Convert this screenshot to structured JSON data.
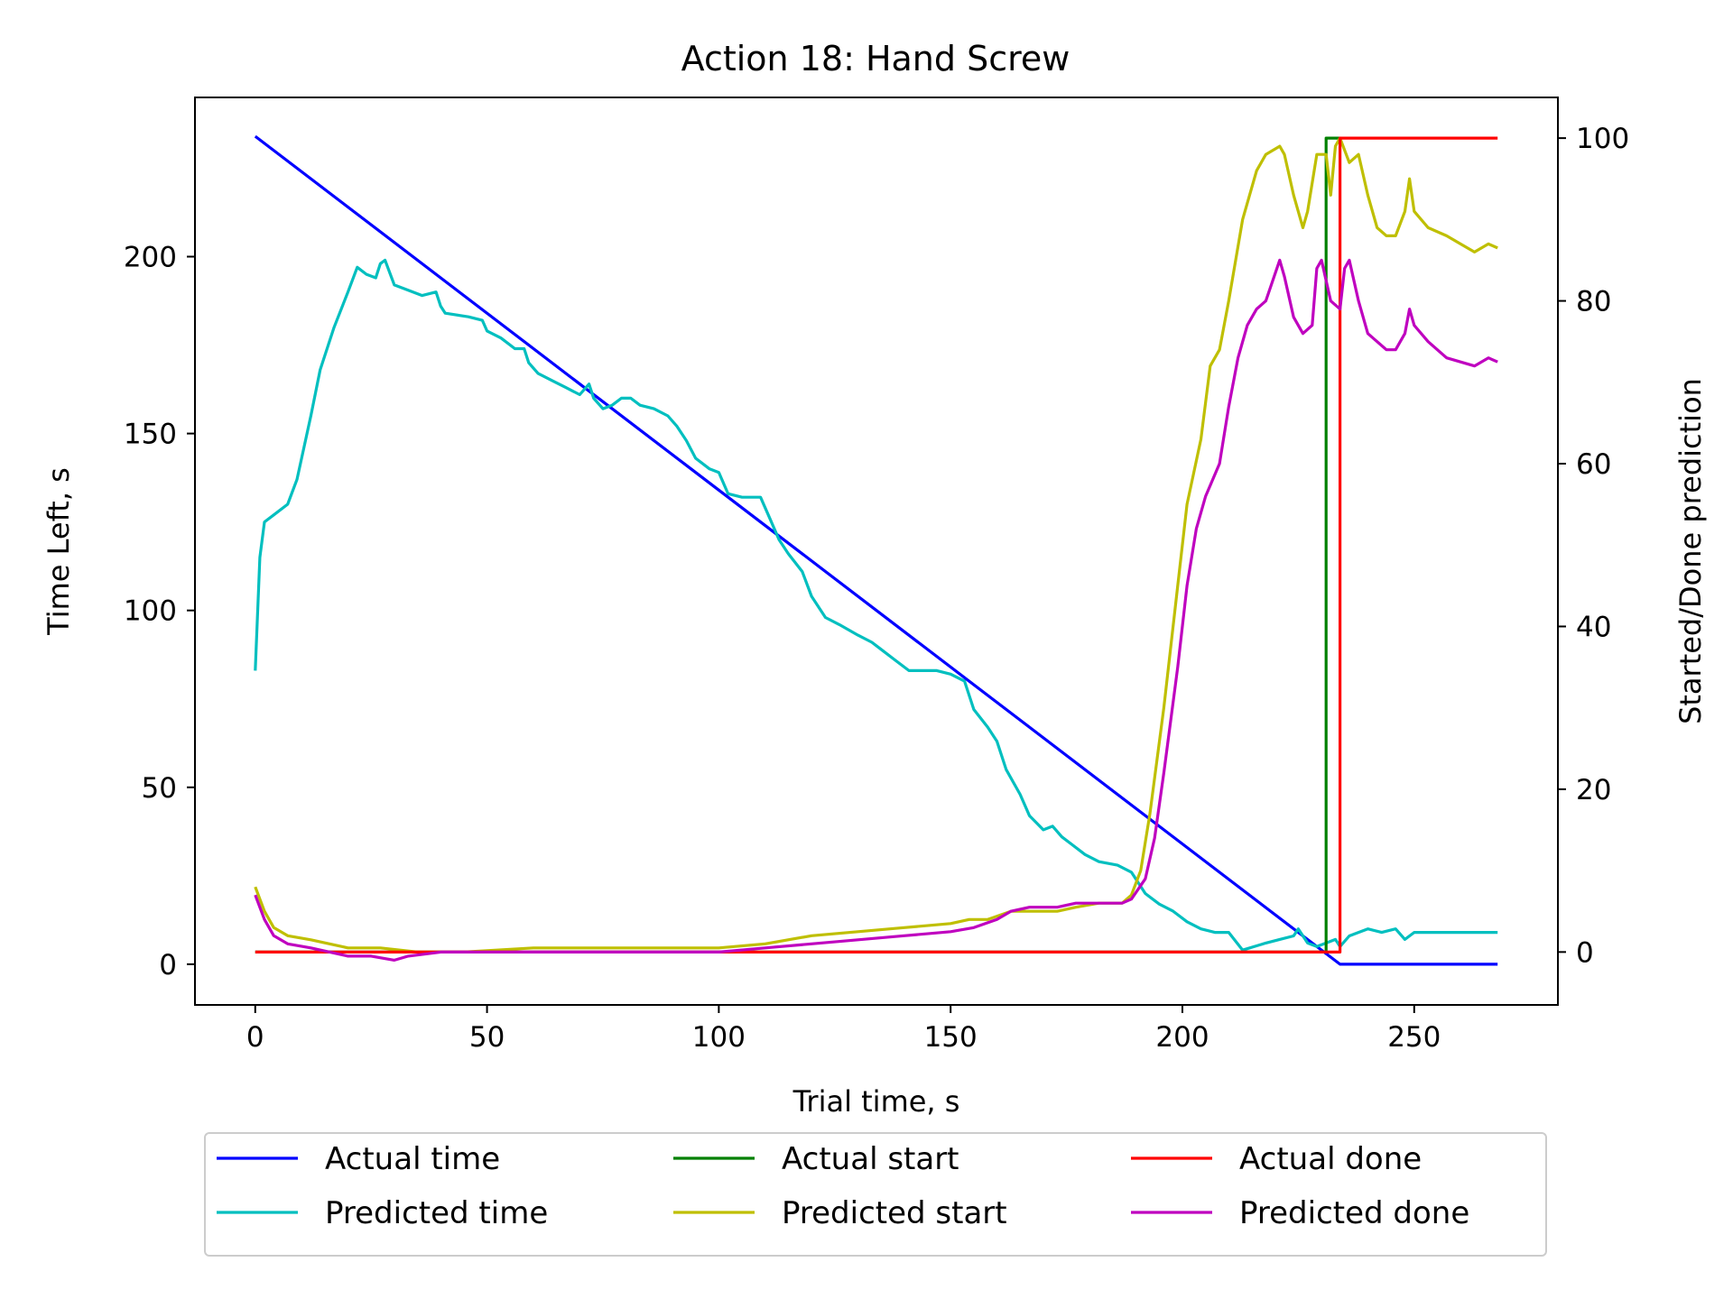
{
  "chart_data": {
    "type": "line",
    "title": "Action 18: Hand Screw",
    "xlabel": "Trial time, s",
    "ylabel": "Time Left, s",
    "ylabel_right": "Started/Done prediction",
    "xlim": [
      -13,
      281
    ],
    "ylim": [
      -11.5,
      245
    ],
    "ylim_right": [
      -6.5,
      105
    ],
    "xticks": [
      0,
      50,
      100,
      150,
      200,
      250
    ],
    "yticks": [
      0,
      50,
      100,
      150,
      200
    ],
    "yticks_right": [
      0,
      20,
      40,
      60,
      80,
      100
    ],
    "grid": false,
    "legend_position": "bottom",
    "series": [
      {
        "name": "Actual time",
        "axis": "left",
        "color": "#0000ff",
        "points": [
          [
            0,
            234
          ],
          [
            234,
            0
          ],
          [
            268,
            0
          ]
        ]
      },
      {
        "name": "Predicted time",
        "axis": "left",
        "color": "#00bfbf",
        "points": [
          [
            0,
            83
          ],
          [
            1,
            115
          ],
          [
            2,
            125
          ],
          [
            4,
            127
          ],
          [
            7,
            130
          ],
          [
            9,
            137
          ],
          [
            12,
            155
          ],
          [
            14,
            168
          ],
          [
            17,
            180
          ],
          [
            20,
            190
          ],
          [
            22,
            197
          ],
          [
            24,
            195
          ],
          [
            26,
            194
          ],
          [
            27,
            198
          ],
          [
            28,
            199
          ],
          [
            30,
            192
          ],
          [
            32,
            191
          ],
          [
            36,
            189
          ],
          [
            39,
            190
          ],
          [
            40,
            186
          ],
          [
            41,
            184
          ],
          [
            46,
            183
          ],
          [
            49,
            182
          ],
          [
            50,
            179
          ],
          [
            53,
            177
          ],
          [
            56,
            174
          ],
          [
            58,
            174
          ],
          [
            59,
            170
          ],
          [
            61,
            167
          ],
          [
            64,
            165
          ],
          [
            67,
            163
          ],
          [
            70,
            161
          ],
          [
            72,
            164
          ],
          [
            73,
            160
          ],
          [
            75,
            157
          ],
          [
            77,
            158
          ],
          [
            79,
            160
          ],
          [
            81,
            160
          ],
          [
            83,
            158
          ],
          [
            86,
            157
          ],
          [
            89,
            155
          ],
          [
            91,
            152
          ],
          [
            93,
            148
          ],
          [
            95,
            143
          ],
          [
            98,
            140
          ],
          [
            100,
            139
          ],
          [
            102,
            133
          ],
          [
            105,
            132
          ],
          [
            109,
            132
          ],
          [
            111,
            126
          ],
          [
            113,
            120
          ],
          [
            115,
            116
          ],
          [
            118,
            111
          ],
          [
            120,
            104
          ],
          [
            123,
            98
          ],
          [
            126,
            96
          ],
          [
            130,
            93
          ],
          [
            133,
            91
          ],
          [
            135,
            89
          ],
          [
            138,
            86
          ],
          [
            141,
            83
          ],
          [
            144,
            83
          ],
          [
            147,
            83
          ],
          [
            150,
            82
          ],
          [
            153,
            80
          ],
          [
            155,
            72
          ],
          [
            158,
            67
          ],
          [
            160,
            63
          ],
          [
            162,
            55
          ],
          [
            165,
            48
          ],
          [
            167,
            42
          ],
          [
            170,
            38
          ],
          [
            172,
            39
          ],
          [
            174,
            36
          ],
          [
            176,
            34
          ],
          [
            179,
            31
          ],
          [
            182,
            29
          ],
          [
            186,
            28
          ],
          [
            189,
            26
          ],
          [
            192,
            20
          ],
          [
            195,
            17
          ],
          [
            198,
            15
          ],
          [
            201,
            12
          ],
          [
            204,
            10
          ],
          [
            207,
            9
          ],
          [
            210,
            9
          ],
          [
            213,
            4
          ],
          [
            218,
            6
          ],
          [
            221,
            7
          ],
          [
            224,
            8
          ],
          [
            225,
            10
          ],
          [
            227,
            6
          ],
          [
            229,
            5
          ],
          [
            231,
            6
          ],
          [
            233,
            7
          ],
          [
            234,
            5
          ],
          [
            236,
            8
          ],
          [
            238,
            9
          ],
          [
            240,
            10
          ],
          [
            243,
            9
          ],
          [
            246,
            10
          ],
          [
            248,
            7
          ],
          [
            250,
            9
          ],
          [
            255,
            9
          ],
          [
            260,
            9
          ],
          [
            265,
            9
          ],
          [
            268,
            9
          ]
        ]
      },
      {
        "name": "Actual start",
        "axis": "right",
        "color": "#008000",
        "points": [
          [
            0,
            0
          ],
          [
            231,
            0
          ],
          [
            231,
            100
          ],
          [
            234,
            100
          ]
        ]
      },
      {
        "name": "Predicted start",
        "axis": "right",
        "color": "#bfbf00",
        "points": [
          [
            0,
            8
          ],
          [
            2,
            5
          ],
          [
            4,
            3
          ],
          [
            7,
            2
          ],
          [
            12,
            1.5
          ],
          [
            20,
            0.5
          ],
          [
            27,
            0.5
          ],
          [
            35,
            0
          ],
          [
            45,
            0
          ],
          [
            60,
            0.5
          ],
          [
            70,
            0.5
          ],
          [
            80,
            0.5
          ],
          [
            90,
            0.5
          ],
          [
            100,
            0.5
          ],
          [
            110,
            1
          ],
          [
            120,
            2
          ],
          [
            130,
            2.5
          ],
          [
            140,
            3
          ],
          [
            150,
            3.5
          ],
          [
            154,
            4
          ],
          [
            158,
            4
          ],
          [
            163,
            5
          ],
          [
            167,
            5
          ],
          [
            173,
            5
          ],
          [
            177,
            5.5
          ],
          [
            182,
            6
          ],
          [
            187,
            6
          ],
          [
            189,
            7
          ],
          [
            191,
            10
          ],
          [
            193,
            17
          ],
          [
            196,
            30
          ],
          [
            199,
            45
          ],
          [
            201,
            55
          ],
          [
            204,
            63
          ],
          [
            206,
            72
          ],
          [
            208,
            74
          ],
          [
            210,
            80
          ],
          [
            213,
            90
          ],
          [
            216,
            96
          ],
          [
            218,
            98
          ],
          [
            221,
            99
          ],
          [
            222,
            98
          ],
          [
            224,
            93
          ],
          [
            226,
            89
          ],
          [
            227,
            91
          ],
          [
            229,
            98
          ],
          [
            231,
            98
          ],
          [
            232,
            93
          ],
          [
            233,
            99
          ],
          [
            234,
            100
          ],
          [
            236,
            97
          ],
          [
            238,
            98
          ],
          [
            240,
            93
          ],
          [
            242,
            89
          ],
          [
            244,
            88
          ],
          [
            246,
            88
          ],
          [
            248,
            91
          ],
          [
            249,
            95
          ],
          [
            250,
            91
          ],
          [
            253,
            89
          ],
          [
            257,
            88
          ],
          [
            260,
            87
          ],
          [
            263,
            86
          ],
          [
            266,
            87
          ],
          [
            268,
            86.5
          ]
        ]
      },
      {
        "name": "Actual done",
        "axis": "right",
        "color": "#ff0000",
        "points": [
          [
            0,
            0
          ],
          [
            234,
            0
          ],
          [
            234,
            100
          ],
          [
            268,
            100
          ]
        ]
      },
      {
        "name": "Predicted done",
        "axis": "right",
        "color": "#bf00bf",
        "points": [
          [
            0,
            7
          ],
          [
            2,
            4
          ],
          [
            4,
            2
          ],
          [
            7,
            1
          ],
          [
            12,
            0.5
          ],
          [
            20,
            -0.5
          ],
          [
            25,
            -0.5
          ],
          [
            30,
            -1
          ],
          [
            33,
            -0.5
          ],
          [
            40,
            0
          ],
          [
            50,
            0
          ],
          [
            60,
            0
          ],
          [
            70,
            0
          ],
          [
            80,
            0
          ],
          [
            90,
            0
          ],
          [
            100,
            0
          ],
          [
            110,
            0.5
          ],
          [
            120,
            1
          ],
          [
            130,
            1.5
          ],
          [
            140,
            2
          ],
          [
            150,
            2.5
          ],
          [
            155,
            3
          ],
          [
            160,
            4
          ],
          [
            163,
            5
          ],
          [
            167,
            5.5
          ],
          [
            173,
            5.5
          ],
          [
            177,
            6
          ],
          [
            182,
            6
          ],
          [
            187,
            6
          ],
          [
            189,
            6.5
          ],
          [
            192,
            9
          ],
          [
            194,
            14
          ],
          [
            196,
            22
          ],
          [
            199,
            35
          ],
          [
            201,
            45
          ],
          [
            203,
            52
          ],
          [
            205,
            56
          ],
          [
            208,
            60
          ],
          [
            210,
            67
          ],
          [
            212,
            73
          ],
          [
            214,
            77
          ],
          [
            216,
            79
          ],
          [
            218,
            80
          ],
          [
            221,
            85
          ],
          [
            222,
            83
          ],
          [
            224,
            78
          ],
          [
            226,
            76
          ],
          [
            228,
            77
          ],
          [
            229,
            84
          ],
          [
            230,
            85
          ],
          [
            232,
            80
          ],
          [
            234,
            79
          ],
          [
            235,
            84
          ],
          [
            236,
            85
          ],
          [
            238,
            80
          ],
          [
            240,
            76
          ],
          [
            242,
            75
          ],
          [
            244,
            74
          ],
          [
            246,
            74
          ],
          [
            248,
            76
          ],
          [
            249,
            79
          ],
          [
            250,
            77
          ],
          [
            253,
            75
          ],
          [
            257,
            73
          ],
          [
            260,
            72.5
          ],
          [
            263,
            72
          ],
          [
            266,
            73
          ],
          [
            268,
            72.5
          ]
        ]
      }
    ]
  }
}
